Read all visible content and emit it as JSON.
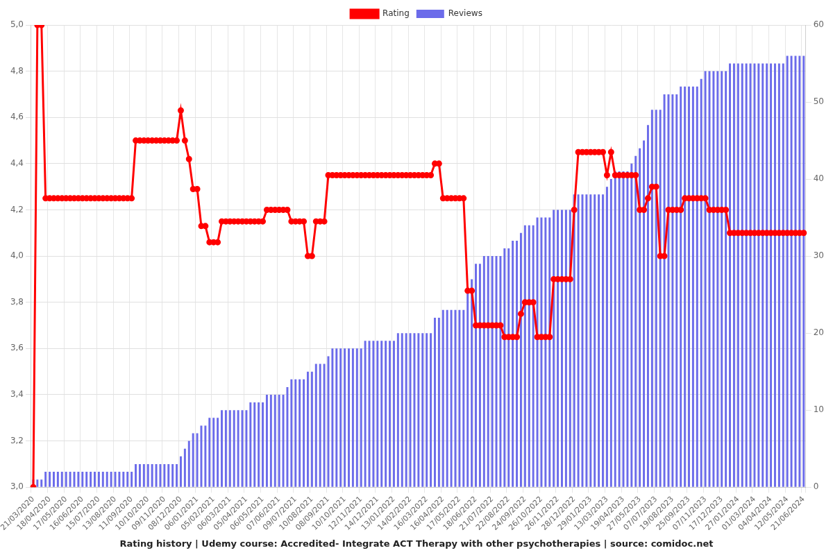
{
  "chart_data": {
    "type": "bar",
    "title": "Rating history | Udemy course: Accredited- Integrate ACT Therapy with other psychotherapies | source: comidoc.net",
    "legend": "top",
    "grid": true,
    "categories": [
      "21/03/2020",
      null,
      null,
      null,
      "18/04/2020",
      null,
      null,
      null,
      "17/05/2020",
      null,
      null,
      null,
      "16/06/2020",
      null,
      null,
      null,
      "15/07/2020",
      null,
      null,
      null,
      "13/08/2020",
      null,
      null,
      null,
      "11/09/2020",
      null,
      null,
      null,
      "10/10/2020",
      null,
      null,
      null,
      "09/11/2020",
      null,
      null,
      null,
      "08/12/2020",
      null,
      null,
      null,
      "06/01/2021",
      null,
      null,
      null,
      "05/02/2021",
      null,
      null,
      null,
      "06/03/2021",
      null,
      null,
      null,
      "05/04/2021",
      null,
      null,
      null,
      "06/05/2021",
      null,
      null,
      null,
      "07/06/2021",
      null,
      null,
      null,
      "09/07/2021",
      null,
      null,
      null,
      "10/08/2021",
      null,
      null,
      null,
      "08/09/2021",
      null,
      null,
      null,
      "10/10/2021",
      null,
      null,
      null,
      "12/11/2021",
      null,
      null,
      null,
      "14/12/2021",
      null,
      null,
      null,
      "13/01/2022",
      null,
      null,
      null,
      "14/02/2022",
      null,
      null,
      null,
      "16/03/2022",
      null,
      null,
      null,
      "16/04/2022",
      null,
      null,
      null,
      "17/05/2022",
      null,
      null,
      null,
      "18/06/2022",
      null,
      null,
      null,
      "21/07/2022",
      null,
      null,
      null,
      "22/08/2022",
      null,
      null,
      null,
      "24/09/2022",
      null,
      null,
      null,
      "26/10/2022",
      null,
      null,
      null,
      "26/11/2022",
      null,
      null,
      null,
      "28/12/2022",
      null,
      null,
      null,
      "29/01/2023",
      null,
      null,
      null,
      "13/03/2023",
      null,
      null,
      null,
      "19/04/2023",
      null,
      null,
      null,
      "27/05/2023",
      null,
      null,
      null,
      "07/07/2023",
      null,
      null,
      null,
      "19/08/2023",
      null,
      null,
      null,
      "25/09/2023",
      null,
      null,
      null,
      "07/11/2023",
      null,
      null,
      null,
      "17/12/2023",
      null,
      null,
      null,
      "27/01/2024",
      null,
      null,
      null,
      "01/03/2024",
      null,
      null,
      null,
      "04/04/2024",
      null,
      null,
      null,
      "12/05/2024",
      null,
      null,
      null,
      "21/06/2024"
    ],
    "series": [
      {
        "name": "Rating",
        "type": "line",
        "color": "#ff0000",
        "marker": "circle",
        "line_style": "solid",
        "axis": "y",
        "values": [
          3,
          5,
          5,
          4.25,
          4.25,
          4.25,
          4.25,
          4.25,
          4.25,
          4.25,
          4.25,
          4.25,
          4.25,
          4.25,
          4.25,
          4.25,
          4.25,
          4.25,
          4.25,
          4.25,
          4.25,
          4.25,
          4.25,
          4.25,
          4.25,
          4.5,
          4.5,
          4.5,
          4.5,
          4.5,
          4.5,
          4.5,
          4.5,
          4.5,
          4.5,
          4.5,
          4.63,
          4.5,
          4.42,
          4.29,
          4.29,
          4.13,
          4.13,
          4.06,
          4.06,
          4.06,
          4.15,
          4.15,
          4.15,
          4.15,
          4.15,
          4.15,
          4.15,
          4.15,
          4.15,
          4.15,
          4.15,
          4.2,
          4.2,
          4.2,
          4.2,
          4.2,
          4.2,
          4.15,
          4.15,
          4.15,
          4.15,
          4.0,
          4.0,
          4.15,
          4.15,
          4.15,
          4.35,
          4.35,
          4.35,
          4.35,
          4.35,
          4.35,
          4.35,
          4.35,
          4.35,
          4.35,
          4.35,
          4.35,
          4.35,
          4.35,
          4.35,
          4.35,
          4.35,
          4.35,
          4.35,
          4.35,
          4.35,
          4.35,
          4.35,
          4.35,
          4.35,
          4.35,
          4.4,
          4.4,
          4.25,
          4.25,
          4.25,
          4.25,
          4.25,
          4.25,
          3.85,
          3.85,
          3.7,
          3.7,
          3.7,
          3.7,
          3.7,
          3.7,
          3.7,
          3.65,
          3.65,
          3.65,
          3.65,
          3.75,
          3.8,
          3.8,
          3.8,
          3.65,
          3.65,
          3.65,
          3.65,
          3.9,
          3.9,
          3.9,
          3.9,
          3.9,
          4.2,
          4.45,
          4.45,
          4.45,
          4.45,
          4.45,
          4.45,
          4.45,
          4.35,
          4.45,
          4.35,
          4.35,
          4.35,
          4.35,
          4.35,
          4.35,
          4.2,
          4.2,
          4.25,
          4.3,
          4.3,
          4.0,
          4.0,
          4.2,
          4.2,
          4.2,
          4.2,
          4.25,
          4.25,
          4.25,
          4.25,
          4.25,
          4.25,
          4.2,
          4.2,
          4.2,
          4.2,
          4.2,
          4.1,
          4.1,
          4.1,
          4.1,
          4.1,
          4.1,
          4.1,
          4.1,
          4.1,
          4.1,
          4.1,
          4.1,
          4.1,
          4.1,
          4.1,
          4.1,
          4.1,
          4.1,
          4.1
        ]
      },
      {
        "name": "Reviews",
        "type": "bar",
        "color": "#6b6bea",
        "axis": "y2",
        "values": [
          1,
          1,
          1,
          2,
          2,
          2,
          2,
          2,
          2,
          2,
          2,
          2,
          2,
          2,
          2,
          2,
          2,
          2,
          2,
          2,
          2,
          2,
          2,
          2,
          2,
          3,
          3,
          3,
          3,
          3,
          3,
          3,
          3,
          3,
          3,
          3,
          4,
          5,
          6,
          7,
          7,
          8,
          8,
          9,
          9,
          9,
          10,
          10,
          10,
          10,
          10,
          10,
          10,
          11,
          11,
          11,
          11,
          12,
          12,
          12,
          12,
          12,
          13,
          14,
          14,
          14,
          14,
          15,
          15,
          16,
          16,
          16,
          17,
          18,
          18,
          18,
          18,
          18,
          18,
          18,
          18,
          19,
          19,
          19,
          19,
          19,
          19,
          19,
          19,
          20,
          20,
          20,
          20,
          20,
          20,
          20,
          20,
          20,
          22,
          22,
          23,
          23,
          23,
          23,
          23,
          23,
          26,
          27,
          29,
          29,
          30,
          30,
          30,
          30,
          30,
          31,
          31,
          32,
          32,
          33,
          34,
          34,
          34,
          35,
          35,
          35,
          35,
          36,
          36,
          36,
          36,
          36,
          38,
          38,
          38,
          38,
          38,
          38,
          38,
          38,
          39,
          40,
          41,
          41,
          41,
          41,
          42,
          43,
          44,
          45,
          47,
          49,
          49,
          49,
          51,
          51,
          51,
          51,
          52,
          52,
          52,
          52,
          52,
          53,
          54,
          54,
          54,
          54,
          54,
          54,
          55,
          55,
          55,
          55,
          55,
          55,
          55,
          55,
          55,
          55,
          55,
          55,
          55,
          55,
          56,
          56,
          56,
          56,
          56
        ]
      }
    ],
    "ylim": [
      3,
      5
    ],
    "yticks": [
      {
        "value": 3,
        "label": "3,0"
      },
      {
        "value": 3.2,
        "label": "3,2"
      },
      {
        "value": 3.4,
        "label": "3,4"
      },
      {
        "value": 3.6,
        "label": "3,6"
      },
      {
        "value": 3.8,
        "label": "3,8"
      },
      {
        "value": 4,
        "label": "4,0"
      },
      {
        "value": 4.2,
        "label": "4,2"
      },
      {
        "value": 4.4,
        "label": "4,4"
      },
      {
        "value": 4.6,
        "label": "4,6"
      },
      {
        "value": 4.8,
        "label": "4,8"
      },
      {
        "value": 5,
        "label": "5,0"
      }
    ],
    "y2lim": [
      0,
      60
    ],
    "y2ticks": [
      0,
      10,
      20,
      30,
      40,
      50,
      60
    ]
  }
}
